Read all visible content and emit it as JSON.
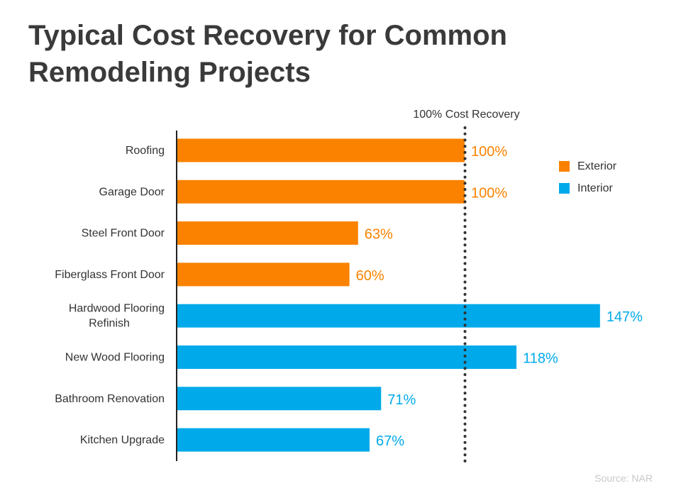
{
  "title": "Typical Cost Recovery for Common Remodeling Projects",
  "source": "Source: NAR",
  "colors": {
    "exterior": "#fa8200",
    "interior": "#00aaea",
    "text": "#3a3a3a"
  },
  "chart_data": {
    "type": "bar",
    "orientation": "horizontal",
    "title": "Typical Cost Recovery for Common Remodeling Projects",
    "categories": [
      "Roofing",
      "Garage Door",
      "Steel Front Door",
      "Fiberglass Front Door",
      "Hardwood Flooring Refinish",
      "New Wood Flooring",
      "Bathroom Renovation",
      "Kitchen Upgrade"
    ],
    "category_lines": [
      [
        "Roofing"
      ],
      [
        "Garage Door"
      ],
      [
        "Steel Front Door"
      ],
      [
        "Fiberglass Front Door"
      ],
      [
        "Hardwood Flooring",
        "Refinish"
      ],
      [
        "New Wood Flooring"
      ],
      [
        "Bathroom Renovation"
      ],
      [
        "Kitchen Upgrade"
      ]
    ],
    "values": [
      100,
      100,
      63,
      60,
      147,
      118,
      71,
      67
    ],
    "value_labels": [
      "100%",
      "100%",
      "63%",
      "60%",
      "147%",
      "118%",
      "71%",
      "67%"
    ],
    "groups": [
      "Exterior",
      "Exterior",
      "Exterior",
      "Exterior",
      "Interior",
      "Interior",
      "Interior",
      "Interior"
    ],
    "legend": [
      {
        "name": "Exterior",
        "color": "#fa8200"
      },
      {
        "name": "Interior",
        "color": "#00aaea"
      }
    ],
    "legend_position": "top-right",
    "reference_line": {
      "value": 100,
      "label": "100% Cost Recovery",
      "style": "dotted"
    },
    "xlim": [
      0,
      150
    ],
    "grid": false
  }
}
